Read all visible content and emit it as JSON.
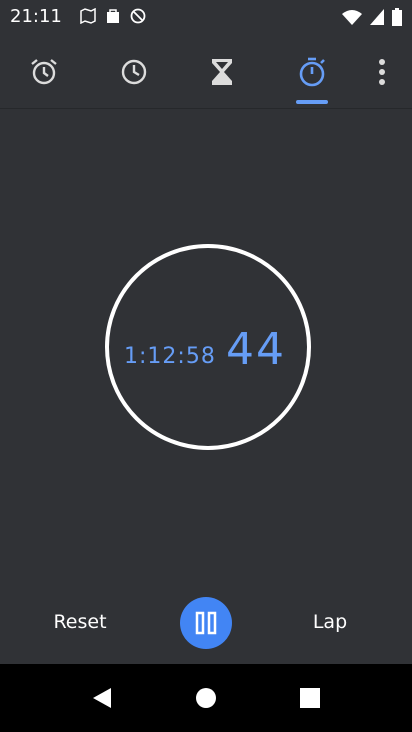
{
  "status_bar": {
    "time": "21:11",
    "icons": [
      "maps-icon",
      "bag-icon",
      "no-disturb-icon",
      "wifi-icon",
      "signal-icon",
      "battery-icon"
    ]
  },
  "tabs": [
    {
      "name": "alarm",
      "icon": "alarm-clock-icon",
      "selected": false
    },
    {
      "name": "clock",
      "icon": "clock-icon",
      "selected": false
    },
    {
      "name": "timer",
      "icon": "hourglass-icon",
      "selected": false
    },
    {
      "name": "stopwatch",
      "icon": "stopwatch-icon",
      "selected": true
    }
  ],
  "stopwatch": {
    "elapsed": "1:12:58",
    "hundredths": "44"
  },
  "controls": {
    "reset_label": "Reset",
    "lap_label": "Lap"
  },
  "colors": {
    "background": "#303236",
    "accent": "#669df6",
    "button": "#4285f4"
  }
}
